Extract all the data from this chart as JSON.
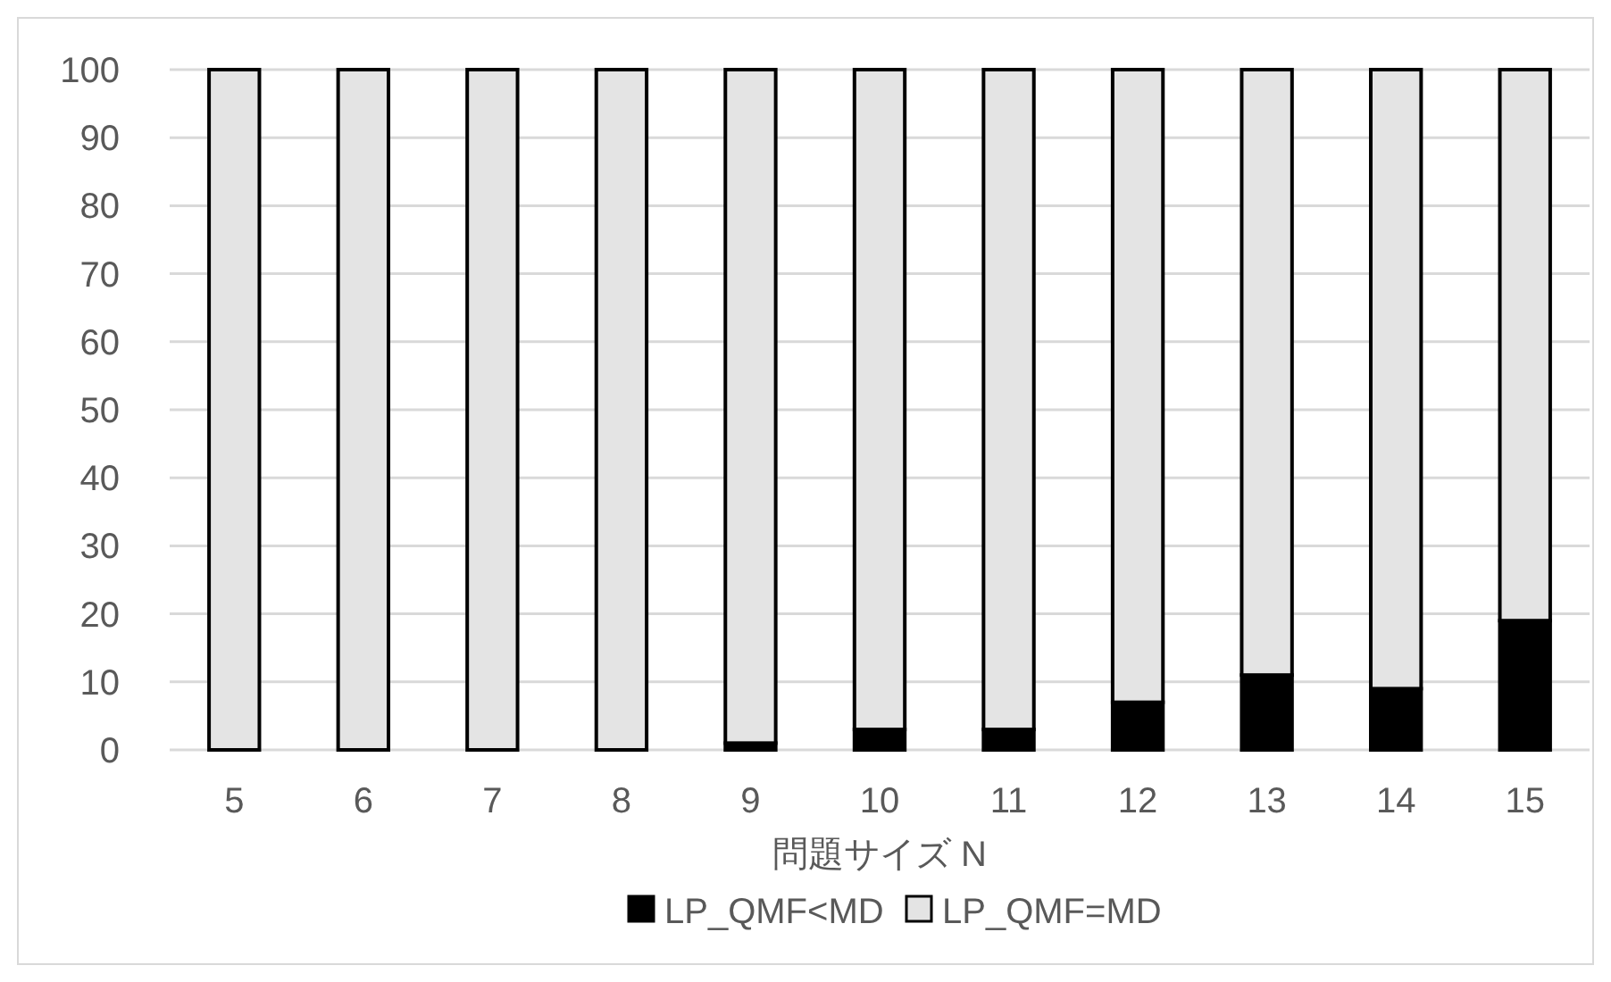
{
  "chart_data": {
    "type": "bar",
    "stacked": true,
    "xlabel": "問題サイズ N",
    "categories": [
      "5",
      "6",
      "7",
      "8",
      "9",
      "10",
      "11",
      "12",
      "13",
      "14",
      "15"
    ],
    "series": [
      {
        "name": "LP_QMF<MD",
        "color": "#000000",
        "values": [
          0,
          0,
          0,
          0,
          1,
          3,
          3,
          7,
          11,
          9,
          19
        ]
      },
      {
        "name": "LP_QMF=MD",
        "color": "#e4e4e4",
        "values": [
          100,
          100,
          100,
          100,
          99,
          97,
          97,
          93,
          89,
          91,
          81
        ]
      }
    ],
    "ylim": [
      0,
      100
    ],
    "yticks": [
      0,
      10,
      20,
      30,
      40,
      50,
      60,
      70,
      80,
      90,
      100
    ],
    "grid": "y",
    "legend": "bottom"
  }
}
